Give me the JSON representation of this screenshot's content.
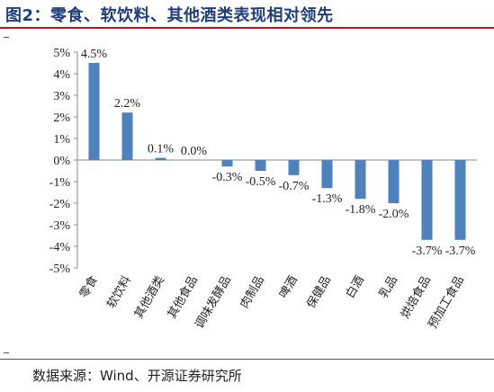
{
  "title": "图2：零食、软饮料、其他酒类表现相对领先",
  "source": "数据来源：Wind、开源证券研究所",
  "chart_data": {
    "type": "bar",
    "categories": [
      "零食",
      "软饮料",
      "其他酒类",
      "其他食品",
      "调味发酵品",
      "肉制品",
      "啤酒",
      "保健品",
      "白酒",
      "乳品",
      "烘焙食品",
      "预加工食品"
    ],
    "values": [
      4.5,
      2.2,
      0.1,
      0.0,
      -0.3,
      -0.5,
      -0.7,
      -1.3,
      -1.8,
      -2.0,
      -3.7,
      -3.7
    ],
    "data_labels": [
      "4.5%",
      "2.2%",
      "0.1%",
      "0.0%",
      "-0.3%",
      "-0.5%",
      "-0.7%",
      "-1.3%",
      "-1.8%",
      "-2.0%",
      "-3.7%",
      "-3.7%"
    ],
    "yticks": [
      5,
      4,
      3,
      2,
      1,
      0,
      -1,
      -2,
      -3,
      -4,
      -5
    ],
    "ytick_labels": [
      "5%",
      "4%",
      "3%",
      "2%",
      "1%",
      "0%",
      "-1%",
      "-2%",
      "-3%",
      "-4%",
      "-5%"
    ],
    "ylim": [
      -5,
      5
    ],
    "title": "",
    "xlabel": "",
    "ylabel": "",
    "bar_color": "#4f81bd",
    "grid": false,
    "legend": "none"
  }
}
